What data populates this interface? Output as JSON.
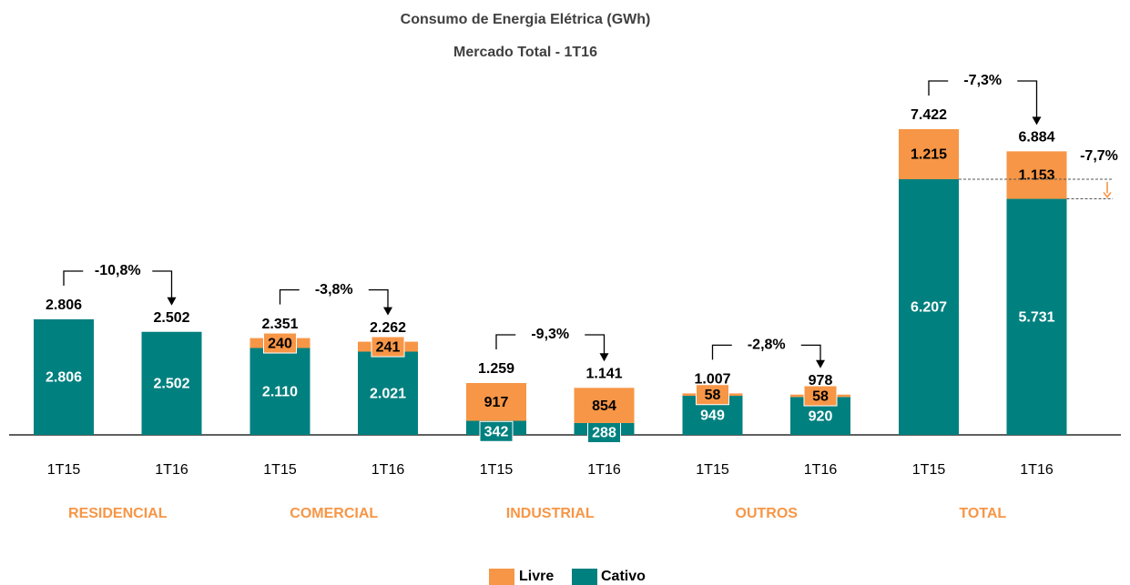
{
  "chart_data": {
    "type": "stacked_bar",
    "title": "Consumo de Energia Elétrica (GWh)",
    "subtitle": "Mercado Total -  1T16",
    "groups": [
      "RESIDENCIAL",
      "COMERCIAL",
      "INDUSTRIAL",
      "OUTROS",
      "TOTAL"
    ],
    "categories": [
      "1T15",
      "1T16",
      "1T15",
      "1T16",
      "1T15",
      "1T16",
      "1T15",
      "1T16",
      "1T15",
      "1T16"
    ],
    "series": [
      {
        "name": "Cativo",
        "color": "#00807f",
        "values": [
          2806,
          2502,
          2110,
          2021,
          342,
          288,
          949,
          920,
          6207,
          5731
        ],
        "value_labels": [
          "2.806",
          "2.502",
          "2.110",
          "2.021",
          "342",
          "288",
          "949",
          "920",
          "6.207",
          "5.731"
        ]
      },
      {
        "name": "Livre",
        "color": "#f79646",
        "values": [
          0,
          0,
          240,
          241,
          917,
          854,
          58,
          58,
          1215,
          1153
        ],
        "value_labels": [
          null,
          null,
          "240",
          "241",
          "917",
          "854",
          "58",
          "58",
          "1.215",
          "1.153"
        ]
      }
    ],
    "totals": {
      "values": [
        2806,
        2502,
        2351,
        2262,
        1259,
        1141,
        1007,
        978,
        7422,
        6884
      ],
      "value_labels": [
        "2.806",
        "2.502",
        "2.351",
        "2.262",
        "1.259",
        "1.141",
        "1.007",
        "978",
        "7.422",
        "6.884"
      ]
    },
    "group_changes": [
      "-10,8%",
      "-3,8%",
      "-9,3%",
      "-2,8%",
      "-7,3%"
    ],
    "cativo_total_change": "-7,7%"
  }
}
